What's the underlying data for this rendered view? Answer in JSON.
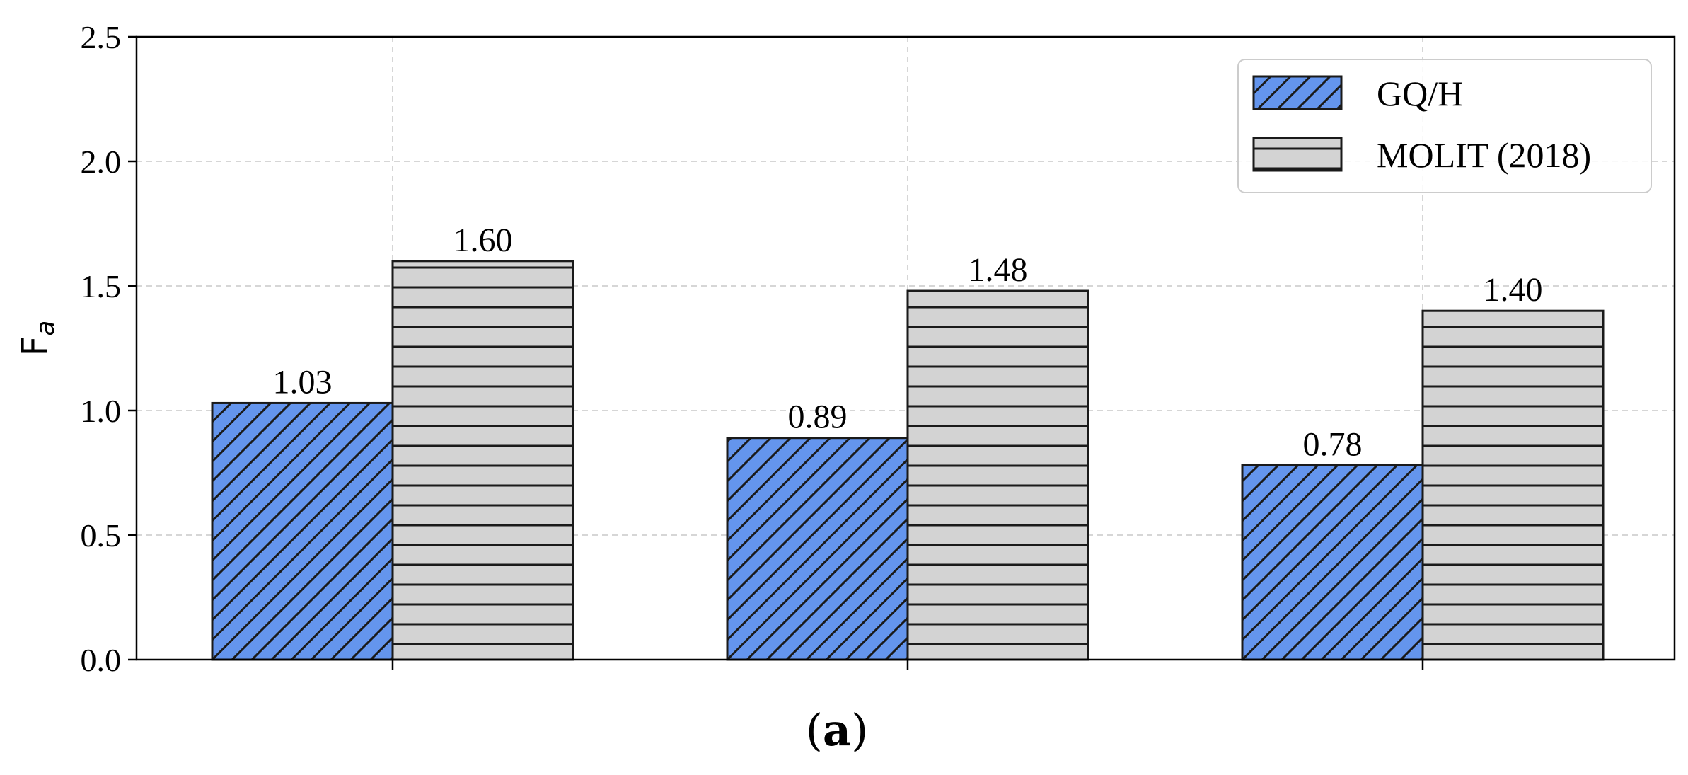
{
  "chart_data": {
    "type": "bar",
    "categories": [
      "",
      "",
      ""
    ],
    "series": [
      {
        "name": "GQ/H",
        "values": [
          1.03,
          0.89,
          0.78
        ],
        "color": "#6495ED",
        "hatch": "diagonal"
      },
      {
        "name": "MOLIT (2018)",
        "values": [
          1.6,
          1.48,
          1.4
        ],
        "color": "#D3D3D3",
        "hatch": "horizontal"
      }
    ],
    "data_labels": [
      [
        "1.03",
        "0.89",
        "0.78"
      ],
      [
        "1.60",
        "1.48",
        "1.40"
      ]
    ],
    "ylabel": {
      "main": "F",
      "sub": "a"
    },
    "ylim": [
      0,
      2.5
    ],
    "yticks": [
      "0.0",
      "0.5",
      "1.0",
      "1.5",
      "2.0",
      "2.5"
    ],
    "grid": true,
    "legend_position": "top-right"
  },
  "caption": {
    "open": "(",
    "letter": "a",
    "close": ")"
  }
}
